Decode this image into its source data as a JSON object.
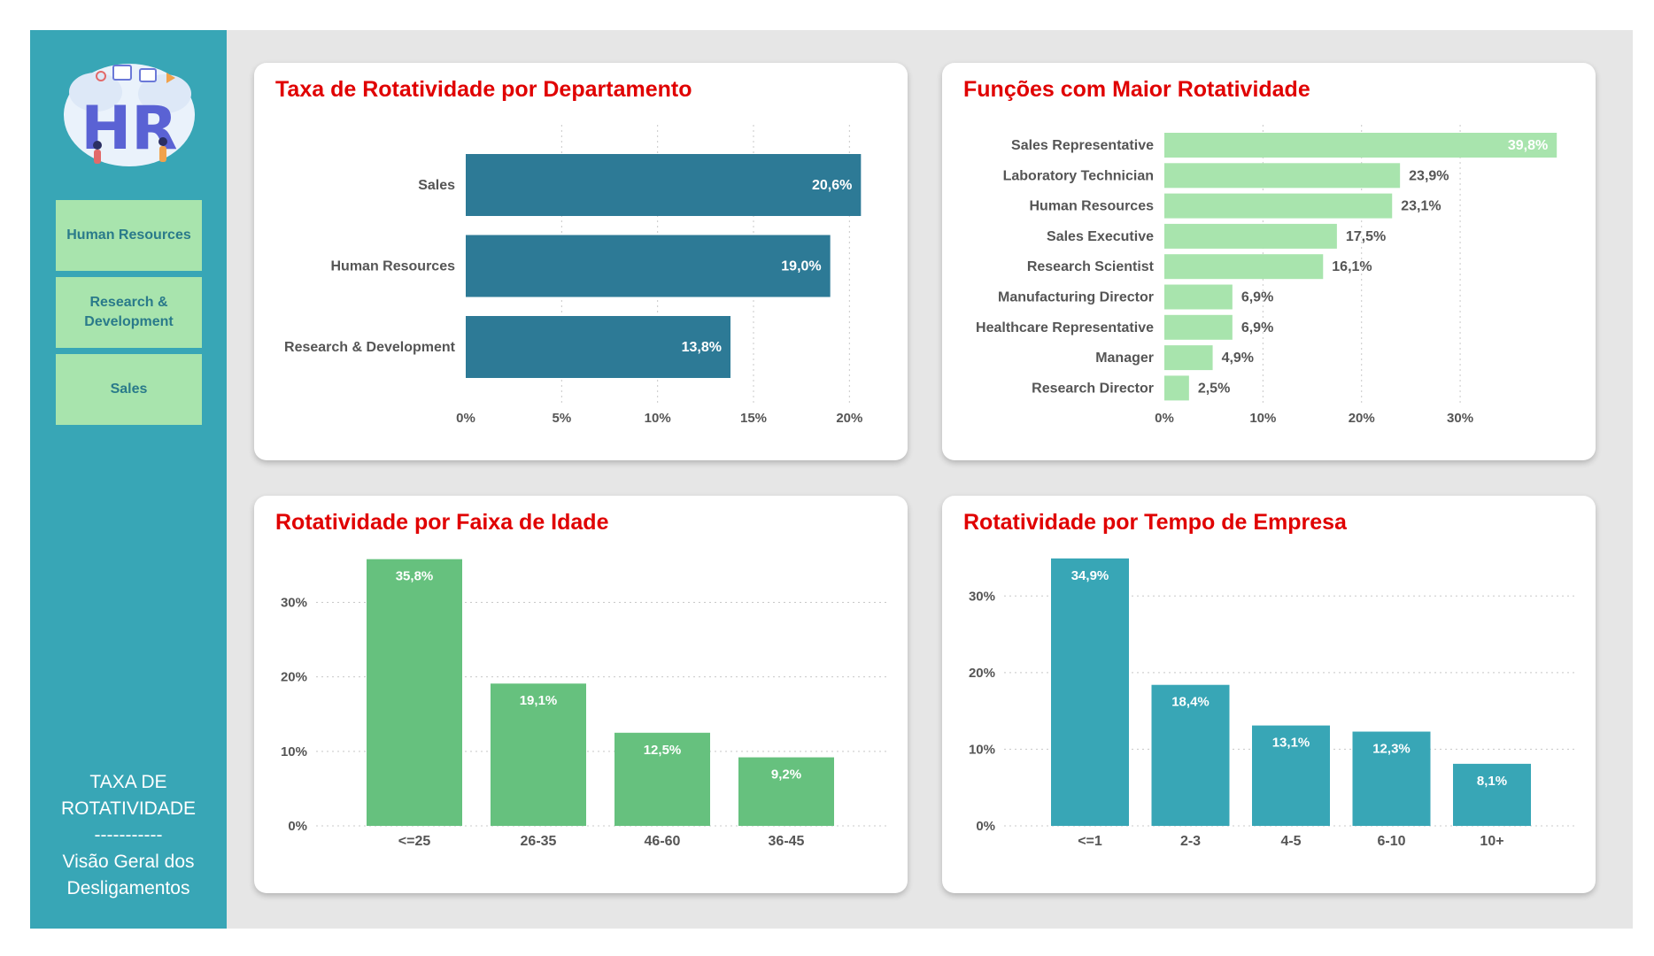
{
  "sidebar": {
    "logo_text": "HR",
    "nav": [
      "Human Resources",
      "Research & Development",
      "Sales"
    ],
    "footer_line1": "TAXA DE\nROTATIVIDADE",
    "footer_sep": "-----------",
    "footer_line2": "Visão Geral dos\nDesligamentos"
  },
  "colors": {
    "sidebar": "#38a6b6",
    "nav_button": "#a8e4ad",
    "title_red": "#e00000",
    "dept_bar": "#2d7a96",
    "role_bar": "#a8e4ad",
    "age_bar": "#66c17e",
    "tenure_bar": "#38a6b6"
  },
  "chart_data": [
    {
      "type": "bar",
      "orientation": "horizontal",
      "title": "Taxa de Rotatividade por Departamento",
      "categories": [
        "Sales",
        "Human Resources",
        "Research & Development"
      ],
      "values": [
        20.6,
        19.0,
        13.8
      ],
      "labels": [
        "20,6%",
        "19,0%",
        "13,8%"
      ],
      "xticks": [
        "0%",
        "5%",
        "10%",
        "15%",
        "20%"
      ],
      "xlim": [
        0,
        21
      ],
      "grid": true
    },
    {
      "type": "bar",
      "orientation": "horizontal",
      "title": "Funções com Maior Rotatividade",
      "categories": [
        "Sales Representative",
        "Laboratory Technician",
        "Human Resources",
        "Sales Executive",
        "Research Scientist",
        "Manufacturing Director",
        "Healthcare Representative",
        "Manager",
        "Research Director"
      ],
      "values": [
        39.8,
        23.9,
        23.1,
        17.5,
        16.1,
        6.9,
        6.9,
        4.9,
        2.5
      ],
      "labels": [
        "39,8%",
        "23,9%",
        "23,1%",
        "17,5%",
        "16,1%",
        "6,9%",
        "6,9%",
        "4,9%",
        "2,5%"
      ],
      "xticks": [
        "0%",
        "10%",
        "20%",
        "30%"
      ],
      "xlim": [
        0,
        40.5
      ],
      "grid": true
    },
    {
      "type": "bar",
      "orientation": "vertical",
      "title": "Rotatividade por Faixa de Idade",
      "categories": [
        "<=25",
        "26-35",
        "46-60",
        "36-45"
      ],
      "values": [
        35.8,
        19.1,
        12.5,
        9.2
      ],
      "labels": [
        "35,8%",
        "19,1%",
        "12,5%",
        "9,2%"
      ],
      "yticks": [
        "0%",
        "10%",
        "20%",
        "30%"
      ],
      "ylim": [
        0,
        36
      ],
      "grid": true
    },
    {
      "type": "bar",
      "orientation": "vertical",
      "title": "Rotatividade por Tempo de Empresa",
      "categories": [
        "<=1",
        "2-3",
        "4-5",
        "6-10",
        "10+"
      ],
      "values": [
        34.9,
        18.4,
        13.1,
        12.3,
        8.1
      ],
      "labels": [
        "34,9%",
        "18,4%",
        "13,1%",
        "12,3%",
        "8,1%"
      ],
      "yticks": [
        "0%",
        "10%",
        "20%",
        "30%"
      ],
      "ylim": [
        0,
        35
      ],
      "grid": true
    }
  ]
}
